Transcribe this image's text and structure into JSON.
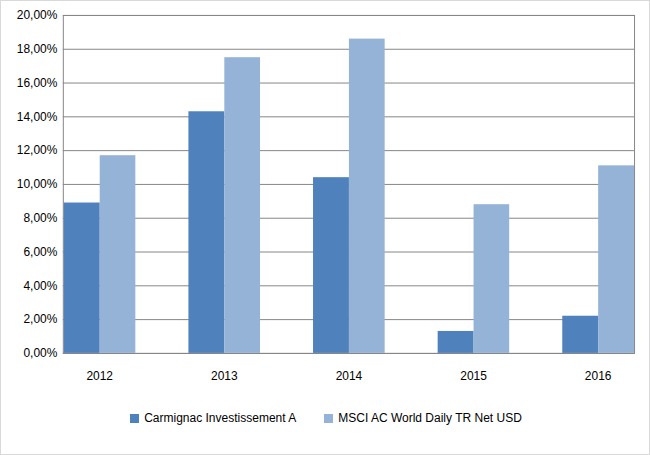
{
  "chart_data": {
    "type": "bar",
    "categories": [
      "2012",
      "2013",
      "2014",
      "2015",
      "2016"
    ],
    "series": [
      {
        "name": "Carmignac Investissement A",
        "color": "#4f81bd",
        "values": [
          8.9,
          14.3,
          10.4,
          1.3,
          2.2
        ]
      },
      {
        "name": "MSCI AC World Daily TR Net USD",
        "color": "#95b3d7",
        "values": [
          11.7,
          17.5,
          18.6,
          8.8,
          11.1
        ]
      }
    ],
    "ylim": [
      0,
      20
    ],
    "yticks": [
      {
        "value": 0,
        "label": "0,00%"
      },
      {
        "value": 2,
        "label": "2,00%"
      },
      {
        "value": 4,
        "label": "4,00%"
      },
      {
        "value": 6,
        "label": "6,00%"
      },
      {
        "value": 8,
        "label": "8,00%"
      },
      {
        "value": 10,
        "label": "10,00%"
      },
      {
        "value": 12,
        "label": "12,00%"
      },
      {
        "value": 14,
        "label": "14,00%"
      },
      {
        "value": 16,
        "label": "16,00%"
      },
      {
        "value": 18,
        "label": "18,00%"
      },
      {
        "value": 20,
        "label": "20,00%"
      }
    ],
    "grid": true,
    "legend": "bottom"
  }
}
